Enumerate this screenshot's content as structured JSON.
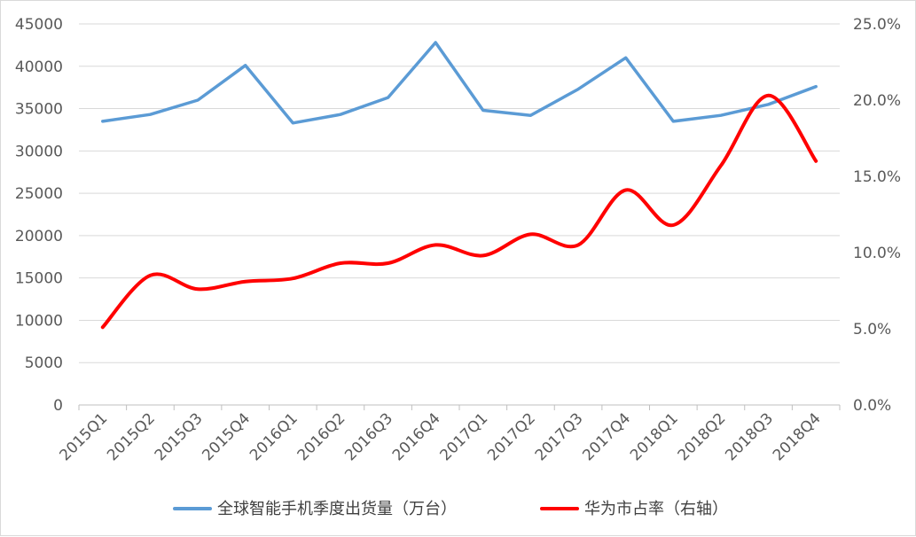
{
  "chart_data": {
    "type": "line",
    "categories": [
      "2015Q1",
      "2015Q2",
      "2015Q3",
      "2015Q4",
      "2016Q1",
      "2016Q2",
      "2016Q3",
      "2016Q4",
      "2017Q1",
      "2017Q2",
      "2017Q3",
      "2017Q4",
      "2018Q1",
      "2018Q2",
      "2018Q3",
      "2018Q4"
    ],
    "series": [
      {
        "name": "全球智能手机季度出货量（万台）",
        "axis": "left",
        "color": "#5b9bd5",
        "smooth": false,
        "values": [
          33500,
          34300,
          36000,
          40100,
          33300,
          34300,
          36300,
          42800,
          34800,
          34200,
          37300,
          41000,
          33500,
          34200,
          35500,
          37600
        ]
      },
      {
        "name": "华为市占率（右轴）",
        "axis": "right",
        "color": "#ff0000",
        "smooth": true,
        "values": [
          0.051,
          0.085,
          0.076,
          0.081,
          0.083,
          0.093,
          0.093,
          0.105,
          0.098,
          0.112,
          0.105,
          0.141,
          0.118,
          0.157,
          0.203,
          0.16
        ]
      }
    ],
    "y_left": {
      "min": 0,
      "max": 45000,
      "step": 5000,
      "tick_labels": [
        "0",
        "5000",
        "10000",
        "15000",
        "20000",
        "25000",
        "30000",
        "35000",
        "40000",
        "45000"
      ]
    },
    "y_right": {
      "min": 0,
      "max": 0.25,
      "step": 0.05,
      "tick_labels": [
        "0.0%",
        "5.0%",
        "10.0%",
        "15.0%",
        "20.0%",
        "25.0%"
      ]
    },
    "grid": true,
    "legend_position": "bottom",
    "title": "",
    "xlabel": "",
    "ylabel": ""
  }
}
